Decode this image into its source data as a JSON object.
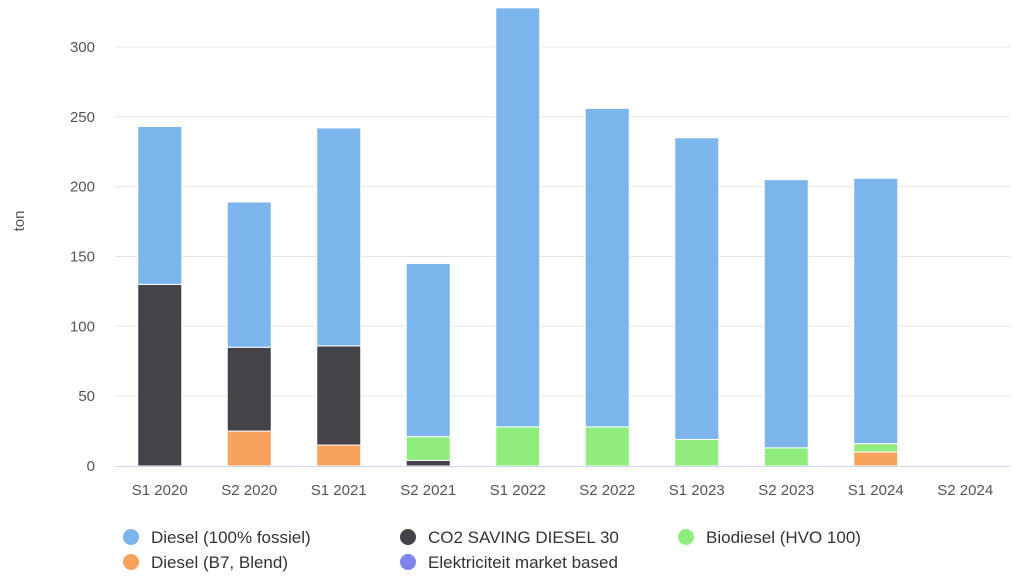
{
  "chart_data": {
    "type": "bar",
    "stacked": true,
    "title": "",
    "xlabel": "",
    "ylabel": "ton",
    "ylim": [
      0,
      330
    ],
    "yticks": [
      0,
      50,
      100,
      150,
      200,
      250,
      300
    ],
    "grid": true,
    "legend_position": "bottom",
    "categories": [
      "S1 2020",
      "S2 2020",
      "S1 2021",
      "S2 2021",
      "S1 2022",
      "S2 2022",
      "S1 2023",
      "S2 2023",
      "S1 2024",
      "S2 2024"
    ],
    "series": [
      {
        "name": "Diesel (B7, Blend)",
        "color": "#f7a35c",
        "values": [
          0,
          25,
          15,
          0,
          0,
          0,
          0,
          0,
          10,
          0
        ]
      },
      {
        "name": "CO2 SAVING DIESEL 30",
        "color": "#434348",
        "values": [
          130,
          60,
          71,
          4,
          0,
          0,
          0,
          0,
          0,
          0
        ]
      },
      {
        "name": "Biodiesel (HVO 100)",
        "color": "#90ed7d",
        "values": [
          0,
          0,
          0,
          17,
          28,
          28,
          19,
          13,
          6,
          0
        ]
      },
      {
        "name": "Elektriciteit market based",
        "color": "#8085e9",
        "values": [
          0,
          0,
          0,
          0,
          0,
          0,
          0,
          0,
          0,
          0
        ]
      },
      {
        "name": "Diesel (100% fossiel)",
        "color": "#7cb5ec",
        "values": [
          113,
          104,
          156,
          124,
          300,
          228,
          216,
          192,
          190,
          0
        ]
      }
    ],
    "legend": [
      {
        "name": "Diesel (100% fossiel)",
        "color": "#7cb5ec"
      },
      {
        "name": "CO2 SAVING DIESEL 30",
        "color": "#434348"
      },
      {
        "name": "Biodiesel (HVO 100)",
        "color": "#90ed7d"
      },
      {
        "name": "Diesel (B7, Blend)",
        "color": "#f7a35c"
      },
      {
        "name": "Elektriciteit market based",
        "color": "#8085e9"
      }
    ]
  }
}
